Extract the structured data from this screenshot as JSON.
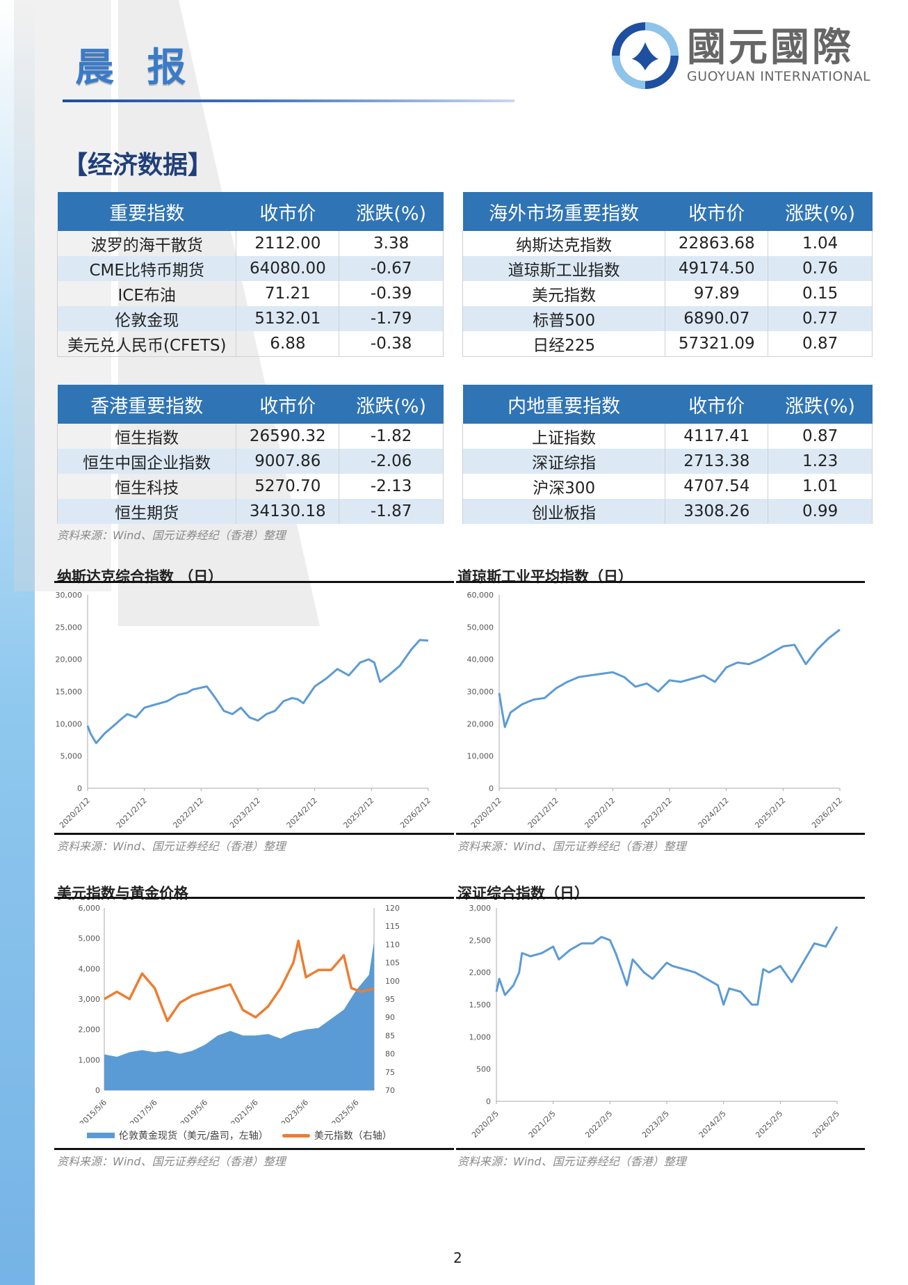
{
  "header": {
    "title": "晨 报",
    "logo_cn": "國元國際",
    "logo_en": "GUOYUAN INTERNATIONAL"
  },
  "section_title": "【经济数据】",
  "tables": {
    "key_indices": {
      "headers": [
        "重要指数",
        "收市价",
        "涨跌(%)"
      ],
      "rows": [
        [
          "波罗的海干散货",
          "2112.00",
          "3.38"
        ],
        [
          "CME比特币期货",
          "64080.00",
          "-0.67"
        ],
        [
          "ICE布油",
          "71.21",
          "-0.39"
        ],
        [
          "伦敦金现",
          "5132.01",
          "-1.79"
        ],
        [
          "美元兑人民币(CFETS)",
          "6.88",
          "-0.38"
        ]
      ]
    },
    "overseas_indices": {
      "headers": [
        "海外市场重要指数",
        "收市价",
        "涨跌(%)"
      ],
      "rows": [
        [
          "纳斯达克指数",
          "22863.68",
          "1.04"
        ],
        [
          "道琼斯工业指数",
          "49174.50",
          "0.76"
        ],
        [
          "美元指数",
          "97.89",
          "0.15"
        ],
        [
          "标普500",
          "6890.07",
          "0.77"
        ],
        [
          "日经225",
          "57321.09",
          "0.87"
        ]
      ]
    },
    "hk_indices": {
      "headers": [
        "香港重要指数",
        "收市价",
        "涨跌(%)"
      ],
      "rows": [
        [
          "恒生指数",
          "26590.32",
          "-1.82"
        ],
        [
          "恒生中国企业指数",
          "9007.86",
          "-2.06"
        ],
        [
          "恒生科技",
          "5270.70",
          "-2.13"
        ],
        [
          "恒生期货",
          "34130.18",
          "-1.87"
        ]
      ]
    },
    "mainland_indices": {
      "headers": [
        "内地重要指数",
        "收市价",
        "涨跌(%)"
      ],
      "rows": [
        [
          "上证指数",
          "4117.41",
          "0.87"
        ],
        [
          "深证综指",
          "2713.38",
          "1.23"
        ],
        [
          "沪深300",
          "4707.54",
          "1.01"
        ],
        [
          "创业板指",
          "3308.26",
          "0.99"
        ]
      ]
    }
  },
  "source_note": "资料来源：Wind、国元证券经纪（香港）整理",
  "page_number": "2",
  "colors": {
    "header_blue": "#2f74b5",
    "row_alt": "#dce9f5",
    "line_blue": "#5b9bd5",
    "line_orange": "#ed7d31"
  },
  "chart_data": [
    {
      "type": "line",
      "title": "纳斯达克综合指数 （日）",
      "categories": [
        "2020/2/12",
        "2021/2/12",
        "2022/2/12",
        "2023/2/12",
        "2024/2/12",
        "2025/2/12",
        "2026/2/12"
      ],
      "ylim": [
        0,
        30000
      ],
      "yticks": [
        "0",
        "5,000",
        "10,000",
        "15,000",
        "20,000",
        "25,000",
        "30,000"
      ],
      "series": [
        {
          "name": "纳斯达克综合指数",
          "x": [
            0,
            0.05,
            0.15,
            0.3,
            0.5,
            0.6,
            0.7,
            0.85,
            1.0,
            1.2,
            1.4,
            1.6,
            1.75,
            1.85,
            2.0,
            2.1,
            2.25,
            2.4,
            2.55,
            2.7,
            2.85,
            3.0,
            3.15,
            3.3,
            3.45,
            3.6,
            3.7,
            3.8,
            3.9,
            4.0,
            4.2,
            4.4,
            4.6,
            4.8,
            4.95,
            5.05,
            5.15,
            5.3,
            5.5,
            5.7,
            5.85,
            6.0
          ],
          "values": [
            9700,
            8500,
            7000,
            8500,
            10000,
            10800,
            11500,
            11000,
            12500,
            13000,
            13500,
            14500,
            14800,
            15300,
            15600,
            15800,
            14000,
            12000,
            11500,
            12500,
            11000,
            10500,
            11500,
            12000,
            13500,
            14000,
            13800,
            13200,
            14500,
            15800,
            17000,
            18500,
            17500,
            19500,
            20000,
            19500,
            16500,
            17500,
            19000,
            21500,
            23000,
            22900
          ]
        }
      ],
      "xlabel": "",
      "ylabel": "",
      "grid": false
    },
    {
      "type": "line",
      "title": "道琼斯工业平均指数（日）",
      "categories": [
        "2020/2/12",
        "2021/2/12",
        "2022/2/12",
        "2023/2/12",
        "2024/2/12",
        "2025/2/12",
        "2026/2/12"
      ],
      "ylim": [
        0,
        60000
      ],
      "yticks": [
        "0",
        "10,000",
        "20,000",
        "30,000",
        "40,000",
        "50,000",
        "60,000"
      ],
      "series": [
        {
          "name": "道琼斯工业平均指数",
          "x": [
            0,
            0.05,
            0.1,
            0.2,
            0.4,
            0.6,
            0.8,
            1.0,
            1.2,
            1.4,
            1.6,
            1.8,
            2.0,
            2.2,
            2.4,
            2.6,
            2.8,
            3.0,
            3.2,
            3.4,
            3.6,
            3.8,
            4.0,
            4.2,
            4.4,
            4.6,
            4.8,
            5.0,
            5.2,
            5.4,
            5.6,
            5.8,
            6.0
          ],
          "values": [
            29500,
            24000,
            19000,
            23500,
            26000,
            27500,
            28000,
            31000,
            33000,
            34500,
            35000,
            35500,
            36000,
            34500,
            31500,
            32500,
            30000,
            33500,
            33000,
            34000,
            35000,
            33000,
            37500,
            39000,
            38500,
            40000,
            42000,
            44000,
            44500,
            38500,
            43000,
            46500,
            49200
          ]
        }
      ],
      "xlabel": "",
      "ylabel": "",
      "grid": false
    },
    {
      "type": "area+line",
      "title": "美元指数与黄金价格",
      "categories": [
        "2015/5/6",
        "2017/5/6",
        "2019/5/6",
        "2021/5/6",
        "2023/5/6",
        "2025/5/6"
      ],
      "ylim_left": [
        0,
        6000
      ],
      "ylim_right": [
        70,
        120
      ],
      "yticks_left": [
        "0",
        "1,000",
        "2,000",
        "3,000",
        "4,000",
        "5,000",
        "6,000"
      ],
      "yticks_right": [
        "70",
        "75",
        "80",
        "85",
        "90",
        "95",
        "100",
        "105",
        "110",
        "115",
        "120"
      ],
      "legend": [
        "伦敦黄金现货（美元/盎司，左轴）",
        "美元指数（右轴）"
      ],
      "legend_position": "bottom",
      "series": [
        {
          "name": "伦敦黄金现货（美元/盎司，左轴）",
          "type": "area",
          "axis": "left",
          "x": [
            0,
            0.5,
            1.0,
            1.5,
            2.0,
            2.5,
            3.0,
            3.5,
            4.0,
            4.5,
            5.0,
            5.5,
            6.0,
            6.5,
            7.0,
            7.5,
            8.0,
            8.5,
            9.0,
            9.5,
            10.0,
            10.5,
            10.7
          ],
          "values": [
            1180,
            1100,
            1250,
            1320,
            1250,
            1300,
            1200,
            1300,
            1500,
            1800,
            1950,
            1800,
            1800,
            1850,
            1700,
            1900,
            2000,
            2050,
            2350,
            2650,
            3300,
            3800,
            4900
          ]
        },
        {
          "name": "美元指数（右轴）",
          "type": "line",
          "axis": "right",
          "x": [
            0,
            0.5,
            1.0,
            1.5,
            2.0,
            2.5,
            3.0,
            3.5,
            4.0,
            4.5,
            5.0,
            5.5,
            6.0,
            6.5,
            7.0,
            7.5,
            7.7,
            8.0,
            8.5,
            9.0,
            9.5,
            9.8,
            10.2,
            10.7
          ],
          "values": [
            95,
            97,
            95,
            102,
            98,
            89,
            94,
            96,
            97,
            98,
            99,
            92,
            90,
            93,
            98,
            105,
            111,
            101,
            103,
            103,
            107,
            98,
            97,
            97.9
          ]
        }
      ]
    },
    {
      "type": "line",
      "title": "深证综合指数（日）",
      "categories": [
        "2020/2/5",
        "2021/2/5",
        "2022/2/5",
        "2023/2/5",
        "2024/2/5",
        "2025/2/5",
        "2026/2/5"
      ],
      "ylim": [
        0,
        3000
      ],
      "yticks": [
        "0",
        "500",
        "1,000",
        "1,500",
        "2,000",
        "2,500",
        "3,000"
      ],
      "series": [
        {
          "name": "深证综合指数",
          "x": [
            0,
            0.05,
            0.15,
            0.3,
            0.4,
            0.45,
            0.6,
            0.8,
            1.0,
            1.1,
            1.3,
            1.5,
            1.7,
            1.85,
            2.0,
            2.1,
            2.2,
            2.3,
            2.4,
            2.6,
            2.75,
            2.9,
            3.0,
            3.1,
            3.3,
            3.5,
            3.7,
            3.9,
            4.0,
            4.1,
            4.3,
            4.5,
            4.6,
            4.7,
            4.8,
            5.0,
            5.2,
            5.3,
            5.4,
            5.6,
            5.8,
            6.0
          ],
          "values": [
            1700,
            1900,
            1650,
            1800,
            2000,
            2300,
            2250,
            2300,
            2400,
            2200,
            2350,
            2450,
            2450,
            2550,
            2500,
            2300,
            2050,
            1800,
            2200,
            2000,
            1900,
            2050,
            2150,
            2100,
            2050,
            2000,
            1900,
            1800,
            1500,
            1750,
            1700,
            1500,
            1500,
            2050,
            2000,
            2100,
            1850,
            2000,
            2150,
            2450,
            2400,
            2710
          ]
        }
      ],
      "xlabel": "",
      "ylabel": "",
      "grid": false
    }
  ]
}
